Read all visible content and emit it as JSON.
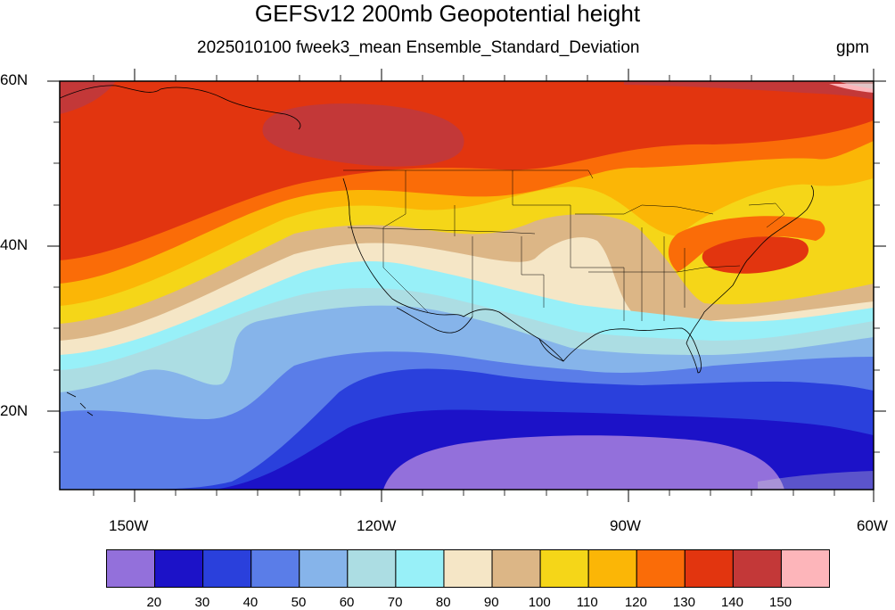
{
  "title": "GEFSv12 200mb Geopotential height",
  "subtitle": "2025010100 fweek3_mean Ensemble_Standard_Deviation",
  "units": "gpm",
  "lat_labels": [
    "60N",
    "40N",
    "20N"
  ],
  "lon_labels": [
    "150W",
    "120W",
    "90W",
    "60W"
  ],
  "colorbar": {
    "labels": [
      "20",
      "30",
      "40",
      "50",
      "60",
      "70",
      "80",
      "90",
      "100",
      "110",
      "120",
      "130",
      "140",
      "150"
    ],
    "colors": [
      "#9370db",
      "#1c12c8",
      "#2a40dc",
      "#5a7de8",
      "#86b4ea",
      "#acdde3",
      "#98f0f8",
      "#f5e6c6",
      "#dcb686",
      "#f5d618",
      "#fbb606",
      "#fa6c08",
      "#e2350f",
      "#c33838",
      "#fdb5ba"
    ]
  },
  "map": {
    "region": "North Pacific / United States",
    "extent": {
      "lon_min": -159,
      "lon_max": -60,
      "lat_min": 10,
      "lat_max": 60
    },
    "field": "200mb geopotential height ensemble standard deviation",
    "highest_value_region": "southern Alaska / Gulf of Alaska and off the US mid-Atlantic coast",
    "lowest_value_region": "tropical eastern Pacific near 10-15N"
  }
}
